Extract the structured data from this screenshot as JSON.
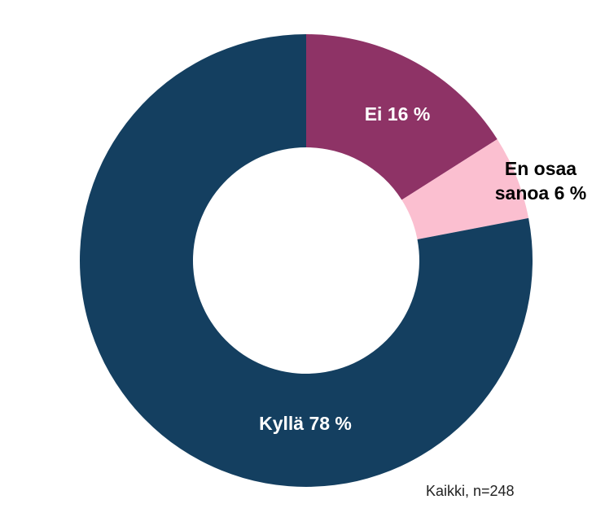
{
  "chart_data": {
    "type": "donut",
    "categories": [
      "Ei",
      "En osaa sanoa",
      "Kyllä"
    ],
    "values": [
      16,
      6,
      78
    ],
    "value_labels": [
      "Ei 16 %",
      "En osaa sanoa 6 %",
      "Kyllä 78 %"
    ],
    "colors": [
      "#8e3366",
      "#fbbfd0",
      "#143f60"
    ],
    "note": "Kaikki, n=248"
  }
}
